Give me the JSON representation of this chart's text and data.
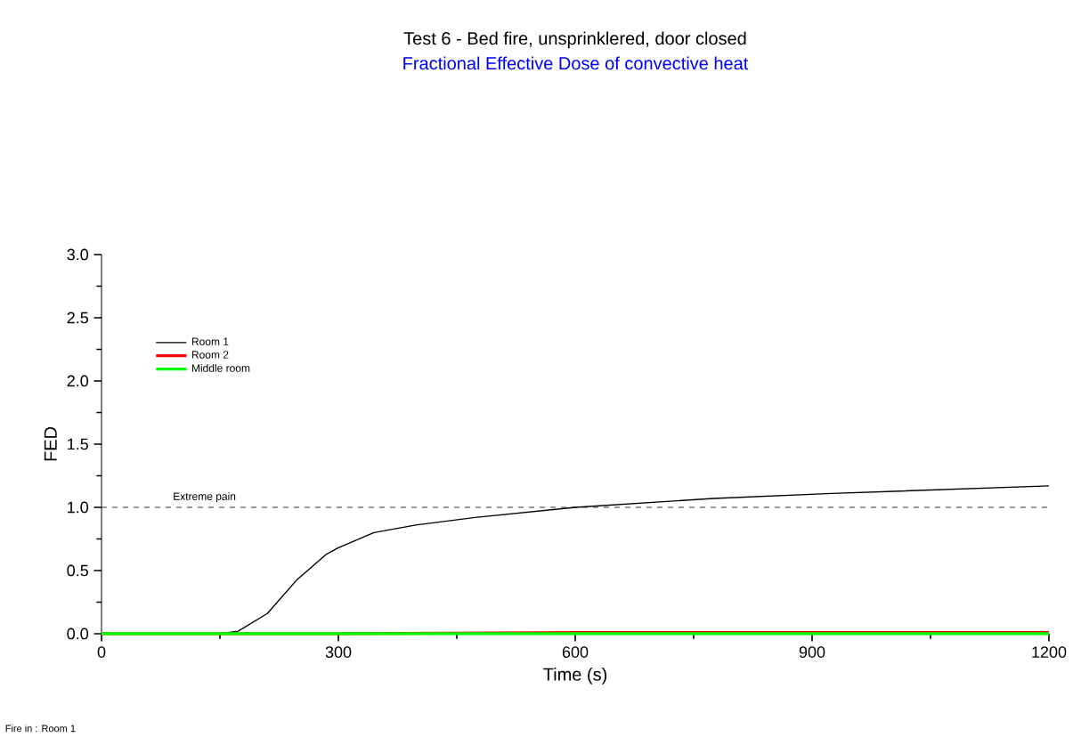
{
  "chart_data": {
    "type": "line",
    "title": "Test 6 - Bed fire, unsprinklered, door closed",
    "subtitle": "Fractional Effective Dose of convective heat",
    "xlabel": "Time (s)",
    "ylabel": "FED",
    "xlim": [
      0,
      1200
    ],
    "ylim": [
      0,
      3
    ],
    "xticks": [
      0,
      300,
      600,
      900,
      1200
    ],
    "yticks": [
      {
        "value": 0,
        "label": "0.0"
      },
      0.5,
      {
        "value": 1,
        "label": "1.0"
      },
      1.5,
      {
        "value": 2,
        "label": "2.0"
      },
      2.5,
      {
        "value": 3,
        "label": "3.0"
      }
    ],
    "legend": "top left",
    "grid": false,
    "series": [
      {
        "name": "Room 1",
        "color": "#000000",
        "x": [
          0,
          150,
          173,
          210,
          248,
          285,
          300,
          345,
          398,
          473,
          600,
          775,
          925,
          1200
        ],
        "values": [
          0,
          0,
          0.02,
          0.16,
          0.43,
          0.63,
          0.68,
          0.8,
          0.86,
          0.92,
          1.0,
          1.07,
          1.11,
          1.17
        ]
      },
      {
        "name": "Room 2",
        "color": "#ff0000",
        "x": [
          0,
          300,
          600,
          900,
          1200
        ],
        "values": [
          0,
          0,
          0.01,
          0.01,
          0.01
        ]
      },
      {
        "name": "Middle room",
        "color": "#00ff00",
        "x": [
          0,
          300,
          600,
          900,
          1200
        ],
        "values": [
          0,
          0,
          0,
          0,
          0
        ]
      }
    ],
    "ref_lines": [
      {
        "axis": "y",
        "value": 1.0,
        "label": "Extreme pain",
        "color": "#000000",
        "line_style": "dashed"
      }
    ],
    "annotations": [
      "Fire in : Room 1"
    ]
  }
}
